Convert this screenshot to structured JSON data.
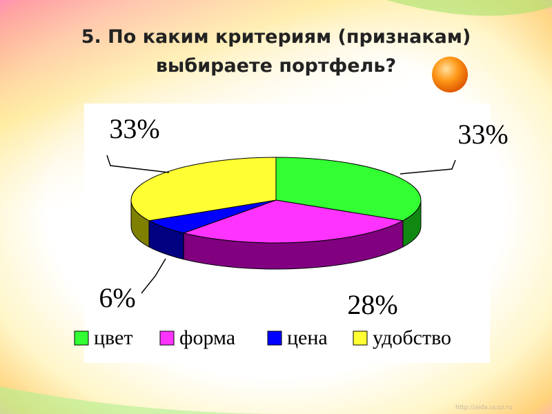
{
  "chart_data": {
    "type": "pie",
    "title": "5. По каким критериям (признакам)",
    "title_line2": "выбираете портфель?",
    "categories": [
      "цвет",
      "форма",
      "цена",
      "удобство"
    ],
    "values": [
      33,
      28,
      6,
      33
    ],
    "value_labels": [
      "33%",
      "28%",
      "6%",
      "33%"
    ],
    "colors": [
      "#33ff33",
      "#ff33ff",
      "#0000ff",
      "#ffff33"
    ],
    "side_colors": [
      "#118811",
      "#800080",
      "#000080",
      "#808000"
    ],
    "legend": "bottom",
    "watermark": "http://aida.ucoz.ru"
  }
}
